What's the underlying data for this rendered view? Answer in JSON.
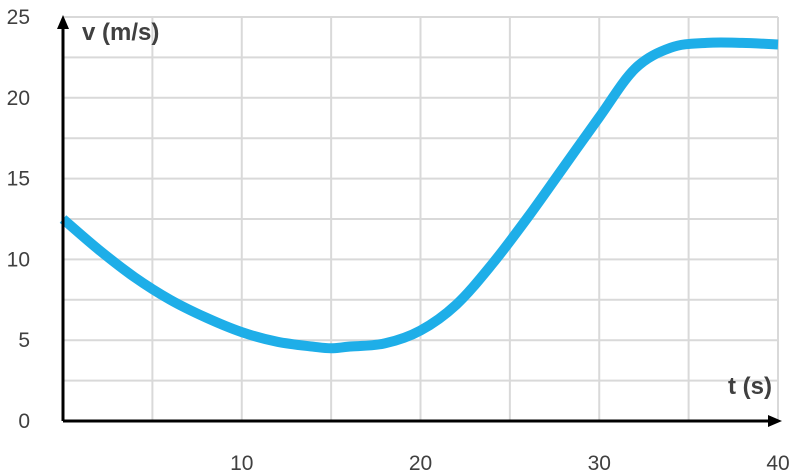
{
  "chart_data": {
    "type": "line",
    "xlabel": "t (s)",
    "ylabel": "v (m/s)",
    "xlim": [
      0,
      40
    ],
    "ylim": [
      0,
      25
    ],
    "x_gridlines": [
      5,
      10,
      15,
      20,
      25,
      30,
      35,
      40
    ],
    "y_gridlines": [
      2.5,
      5,
      7.5,
      10,
      12.5,
      15,
      17.5,
      20,
      22.5,
      25
    ],
    "x_tick_labels": [
      "10",
      "20",
      "30",
      "40"
    ],
    "y_tick_labels": [
      "0",
      "5",
      "10",
      "15",
      "20",
      "25"
    ],
    "grid": true,
    "colors": {
      "line": "#1eaee8",
      "grid": "#d9d9d9",
      "axis": "#000000"
    },
    "series": [
      {
        "x": [
          0,
          2,
          4,
          6,
          8,
          10,
          12,
          14,
          15,
          16,
          18,
          20,
          22,
          24,
          26,
          28,
          30,
          32,
          34,
          36,
          38,
          40
        ],
        "y": [
          12.5,
          10.6,
          8.9,
          7.5,
          6.4,
          5.5,
          4.9,
          4.6,
          4.5,
          4.6,
          4.8,
          5.6,
          7.2,
          9.7,
          12.6,
          15.7,
          18.8,
          21.8,
          23.1,
          23.4,
          23.4,
          23.3
        ]
      }
    ]
  }
}
